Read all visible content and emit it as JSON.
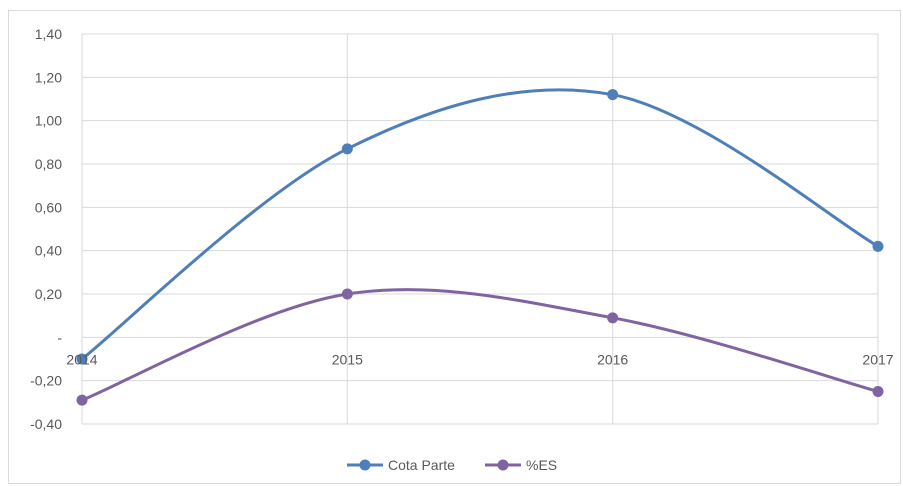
{
  "chart_data": {
    "type": "line",
    "x": [
      "2014",
      "2015",
      "2016",
      "2017"
    ],
    "ylim": [
      -0.4,
      1.4
    ],
    "y_ticks": [
      {
        "value": 1.4,
        "label": "1,40"
      },
      {
        "value": 1.2,
        "label": "1,20"
      },
      {
        "value": 1.0,
        "label": "1,00"
      },
      {
        "value": 0.8,
        "label": "0,80"
      },
      {
        "value": 0.6,
        "label": "0,60"
      },
      {
        "value": 0.4,
        "label": "0,40"
      },
      {
        "value": 0.2,
        "label": "0,20"
      },
      {
        "value": 0.0,
        "label": "-"
      },
      {
        "value": -0.2,
        "label": "-0,20"
      },
      {
        "value": -0.4,
        "label": "-0,40"
      }
    ],
    "grid": true,
    "smooth": true,
    "legend_position": "bottom",
    "series": [
      {
        "name": "Cota Parte",
        "color": "#4e7fb8",
        "values": [
          -0.1,
          0.87,
          1.12,
          0.42
        ]
      },
      {
        "name": "%ES",
        "color": "#8064a2",
        "values": [
          -0.29,
          0.2,
          0.09,
          -0.25
        ]
      }
    ]
  }
}
